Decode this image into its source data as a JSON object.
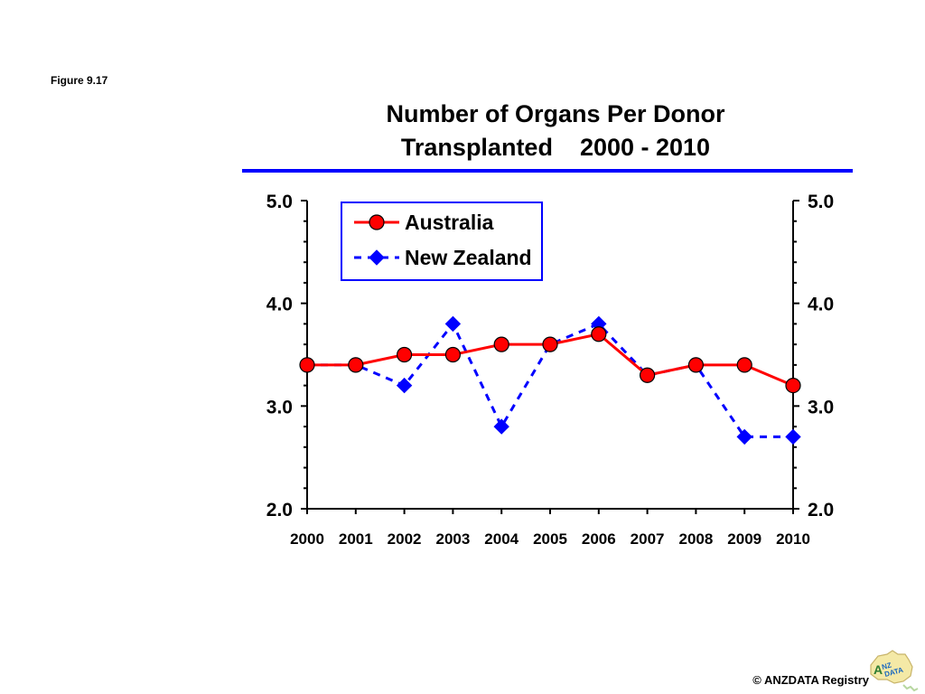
{
  "figure_label": "Figure 9.17",
  "footer_text": "© ANZDATA Registry",
  "logo_text": "ANZDATA",
  "chart_data": {
    "type": "line",
    "title_line1": "Number of Organs Per Donor",
    "title_line2": "Transplanted    2000 - 2010",
    "categories": [
      "2000",
      "2001",
      "2002",
      "2003",
      "2004",
      "2005",
      "2006",
      "2007",
      "2008",
      "2009",
      "2010"
    ],
    "ylim": [
      2.0,
      5.0
    ],
    "y_ticks": [
      "2.0",
      "3.0",
      "4.0",
      "5.0"
    ],
    "y_tick_values": [
      2.0,
      3.0,
      4.0,
      5.0
    ],
    "minor_tick_step": 0.2,
    "grid": false,
    "secondary_y_axis": true,
    "legend_position": "top-left",
    "series": [
      {
        "name": "Australia",
        "values": [
          3.4,
          3.4,
          3.5,
          3.5,
          3.6,
          3.6,
          3.7,
          3.3,
          3.4,
          3.4,
          3.2
        ],
        "color": "#ff0000",
        "marker": "circle",
        "line_style": "solid"
      },
      {
        "name": "New Zealand",
        "values": [
          3.4,
          3.4,
          3.2,
          3.8,
          2.8,
          3.6,
          3.8,
          3.3,
          3.4,
          2.7,
          2.7
        ],
        "color": "#0000ff",
        "marker": "diamond",
        "line_style": "dashed"
      }
    ],
    "colors": {
      "title_rule": "#0000ff",
      "legend_border": "#0000ff",
      "axis": "#000000"
    }
  }
}
